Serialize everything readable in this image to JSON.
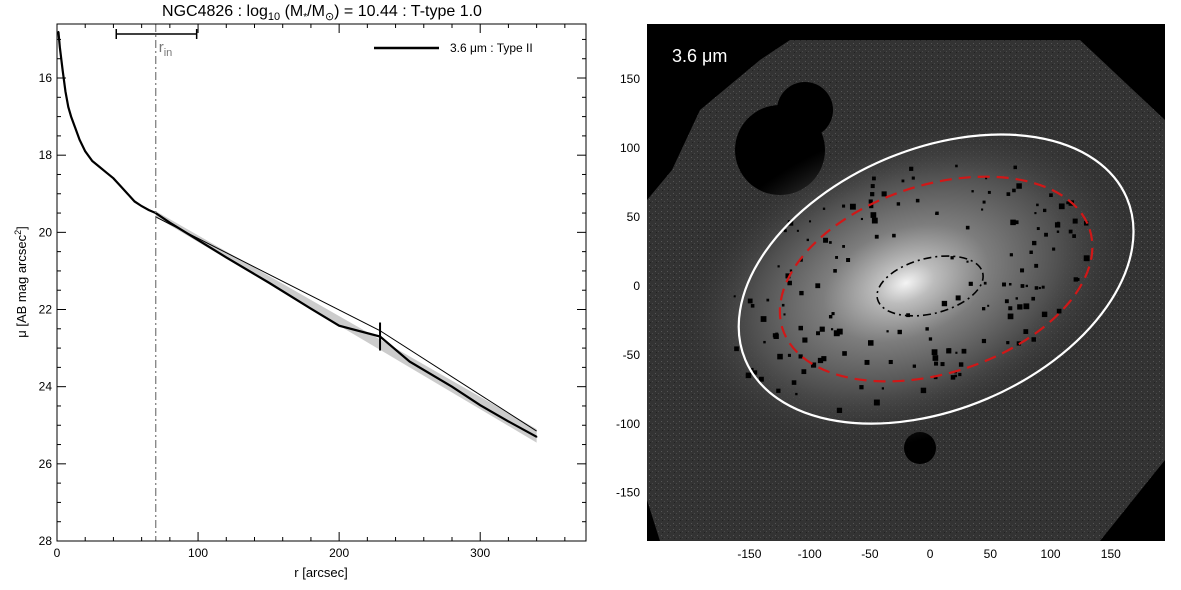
{
  "figure": {
    "title_prefix": "NGC4826 : log",
    "title_sub": "10",
    "title_mid": " (M",
    "title_star": "*",
    "title_slash": "/M",
    "title_sun": "⊙",
    "title_suffix": ") = 10.44 : T-type 1.0"
  },
  "colors": {
    "profile": "#000000",
    "profile_band": "#999999",
    "rin_line": "#777777",
    "break_ellipse": "#d01818",
    "outer_ellipse": "#ffffff",
    "inner_ellipse": "#000000",
    "image_background": "#000000"
  },
  "chart_data": [
    {
      "type": "line",
      "title": "NGC4826 : log10 (M*/M⊙) = 10.44 : T-type 1.0",
      "xlabel": "r [arcsec]",
      "ylabel_prefix": "μ [AB mag arcsec",
      "ylabel_sup": "2",
      "ylabel_suffix": "]",
      "xlim": [
        0,
        375
      ],
      "ylim": [
        28,
        14.6
      ],
      "y_inverted": true,
      "x_ticks": [
        0,
        100,
        200,
        300
      ],
      "y_ticks": [
        16,
        18,
        20,
        22,
        24,
        26,
        28
      ],
      "grid": false,
      "legend": {
        "placement": "top-right",
        "label": "3.6 μm : Type II"
      },
      "series": [
        {
          "name": "3.6 μm : Type II",
          "x": [
            1,
            2,
            4,
            6,
            8,
            10,
            13,
            16,
            20,
            25,
            30,
            35,
            40,
            45,
            50,
            55,
            60,
            65,
            70,
            80,
            100,
            120,
            150,
            180,
            200,
            229,
            250,
            280,
            300,
            320,
            340
          ],
          "y": [
            14.8,
            15.2,
            15.8,
            16.35,
            16.75,
            17.0,
            17.3,
            17.6,
            17.9,
            18.15,
            18.3,
            18.45,
            18.6,
            18.8,
            19.0,
            19.2,
            19.32,
            19.42,
            19.5,
            19.75,
            20.2,
            20.65,
            21.3,
            21.98,
            22.42,
            22.7,
            23.35,
            24.0,
            24.48,
            24.9,
            25.3
          ],
          "band_x": [
            70,
            340
          ],
          "band_y_low": [
            19.45,
            25.1
          ],
          "band_y_high": [
            19.6,
            25.45
          ]
        },
        {
          "name": "",
          "style": "thin fit",
          "x": [
            70,
            229
          ],
          "y": [
            19.6,
            22.55
          ]
        },
        {
          "name": "",
          "style": "thin fit",
          "x": [
            229,
            340
          ],
          "y": [
            22.55,
            25.15
          ]
        }
      ],
      "annotations": {
        "r_in_label": "r",
        "r_in_sub": "in",
        "r_in_value": 70,
        "r_in_range": [
          42,
          99
        ],
        "break_radius": 229
      }
    },
    {
      "type": "image",
      "label": "3.6 μm",
      "xlim": [
        -235,
        195
      ],
      "ylim": [
        -185,
        190
      ],
      "x_ticks": [
        -150,
        -100,
        -50,
        0,
        50,
        100,
        150
      ],
      "y_ticks": [
        150,
        100,
        50,
        0,
        -50,
        -100,
        -150
      ],
      "x_tick_labels": [
        "-150",
        "-100",
        "-50",
        "0",
        "50",
        "100",
        "150"
      ],
      "y_tick_labels": [
        "150",
        "100",
        "50",
        "0",
        "-50",
        "-100",
        "-150"
      ],
      "ellipses": [
        {
          "name": "outer",
          "center": [
            5,
            5
          ],
          "semi_major": 172,
          "semi_minor": 108,
          "angle_deg": 23,
          "style": "solid"
        },
        {
          "name": "break",
          "center": [
            5,
            5
          ],
          "semi_major": 134,
          "semi_minor": 78,
          "angle_deg": 18,
          "style": "dashed"
        },
        {
          "name": "inner",
          "center": [
            0,
            0
          ],
          "semi_major": 45,
          "semi_minor": 23,
          "angle_deg": 14,
          "style": "dash-dot"
        }
      ]
    }
  ]
}
